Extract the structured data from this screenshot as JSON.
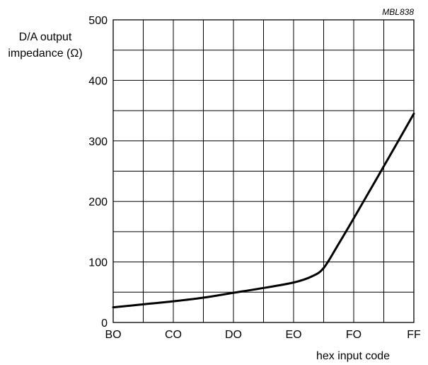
{
  "chart_data": {
    "type": "line",
    "reference": "MBL838",
    "ylabel_line1": "D/A output",
    "ylabel_line2": "impedance (Ω)",
    "xlabel": "hex input code",
    "x_categories": [
      "BO",
      "CO",
      "DO",
      "EO",
      "FO",
      "FF"
    ],
    "x_range": [
      0,
      5
    ],
    "ylim": [
      0,
      500
    ],
    "y_ticks": [
      0,
      100,
      200,
      300,
      400,
      500
    ],
    "grid": true,
    "series": [
      {
        "points": [
          {
            "x": 0,
            "y": 25
          },
          {
            "x": 0.5,
            "y": 30
          },
          {
            "x": 1,
            "y": 35
          },
          {
            "x": 1.5,
            "y": 41
          },
          {
            "x": 2,
            "y": 49
          },
          {
            "x": 2.5,
            "y": 57
          },
          {
            "x": 3,
            "y": 66
          },
          {
            "x": 3.3,
            "y": 76
          },
          {
            "x": 3.5,
            "y": 90
          },
          {
            "x": 3.75,
            "y": 130
          },
          {
            "x": 4,
            "y": 172
          },
          {
            "x": 4.5,
            "y": 258
          },
          {
            "x": 5,
            "y": 345
          }
        ]
      }
    ]
  }
}
